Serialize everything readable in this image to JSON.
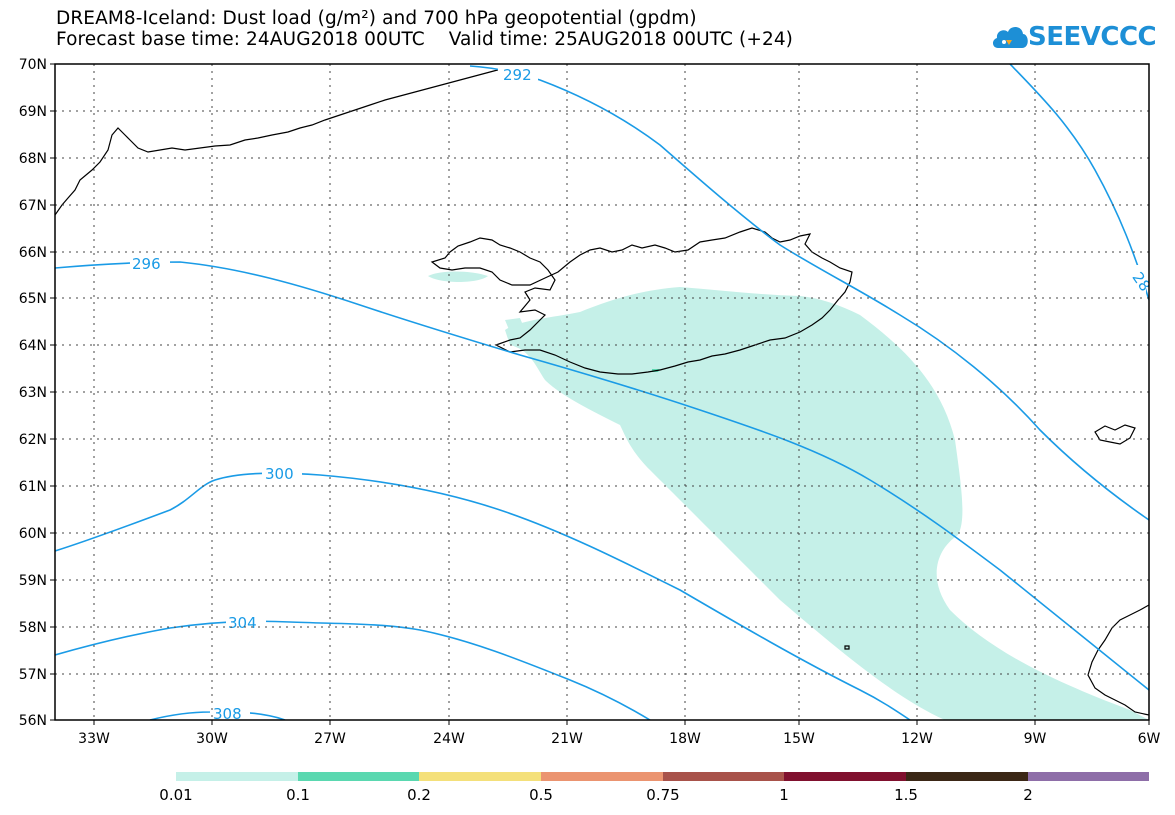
{
  "header": {
    "line1": "DREAM8-Iceland: Dust load (g/m²) and 700 hPa geopotential (gpdm)",
    "line2": "Forecast base time: 24AUG2018 00UTC    Valid time: 25AUG2018 00UTC (+24)"
  },
  "logo": {
    "text": "SEEVCCC",
    "icon": "cloud-icon"
  },
  "axes": {
    "lat_labels": [
      "70N",
      "69N",
      "68N",
      "67N",
      "66N",
      "65N",
      "64N",
      "63N",
      "62N",
      "61N",
      "60N",
      "59N",
      "58N",
      "57N",
      "56N"
    ],
    "lon_labels": [
      "33W",
      "30W",
      "27W",
      "24W",
      "21W",
      "18W",
      "15W",
      "12W",
      "9W",
      "6W"
    ]
  },
  "contours": [
    {
      "label": "292"
    },
    {
      "label": "296"
    },
    {
      "label": "300"
    },
    {
      "label": "304"
    },
    {
      "label": "308"
    },
    {
      "label": "28"
    }
  ],
  "colorbar": {
    "labels": [
      "0.01",
      "0.1",
      "0.2",
      "0.5",
      "0.75",
      "1",
      "1.5",
      "2"
    ],
    "colors": [
      "#c5f0e8",
      "#5ad8b0",
      "#f4e07a",
      "#eb9470",
      "#a8524a",
      "#80102e",
      "#3b2716",
      "#8e6ea8"
    ]
  },
  "colors": {
    "contour": "#1a9be6",
    "dust": "#c5f0e8",
    "coast": "#000000"
  }
}
